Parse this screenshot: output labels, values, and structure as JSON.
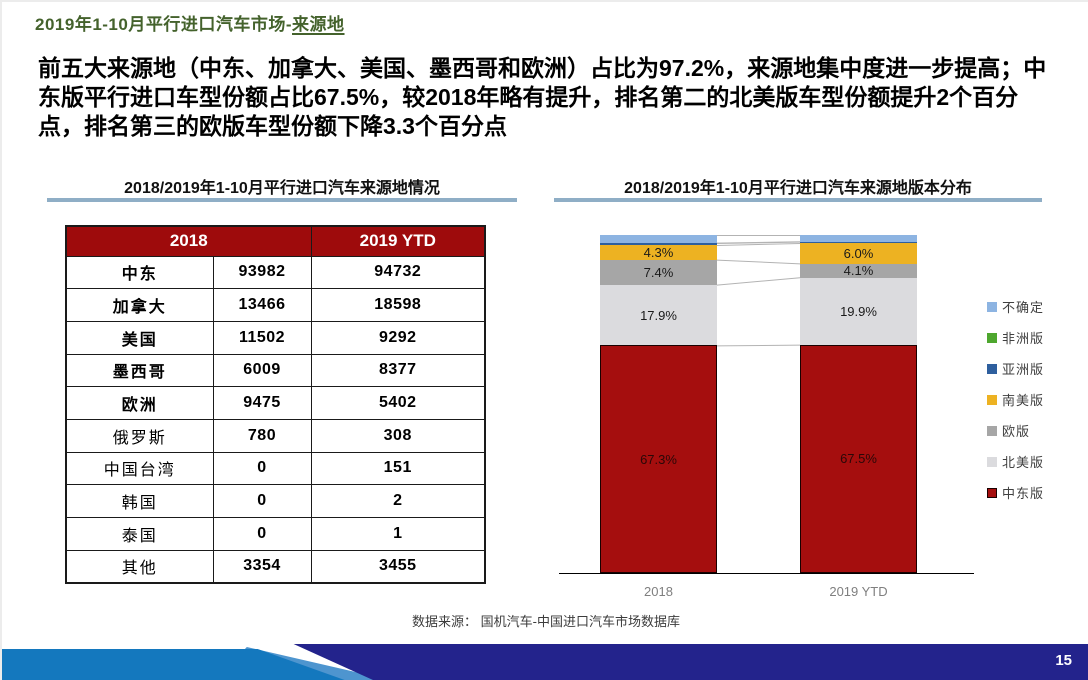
{
  "slide": {
    "title_prefix": "2019年1-10月平行进口汽车市场-",
    "title_underlined": "来源地",
    "body": "前五大来源地（中东、加拿大、美国、墨西哥和欧洲）占比为97.2%，来源地集中度进一步提高；中东版平行进口车型份额占比67.5%，较2018年略有提升，排名第二的北美版车型份额提升2个百分点，排名第三的欧版车型份额下降3.3个百分点",
    "source_note": "数据来源： 国机汽车-中国进口汽车市场数据库",
    "page_number": "15"
  },
  "table_panel": {
    "title": "2018/2019年1-10月平行进口汽车来源地情况",
    "header": {
      "col_2018": "2018",
      "col_2019": "2019 YTD"
    },
    "rows": [
      {
        "label": "中东",
        "v2018": "93982",
        "v2019": "94732",
        "emphasis": true
      },
      {
        "label": "加拿大",
        "v2018": "13466",
        "v2019": "18598",
        "emphasis": true
      },
      {
        "label": "美国",
        "v2018": "11502",
        "v2019": "9292",
        "emphasis": true
      },
      {
        "label": "墨西哥",
        "v2018": "6009",
        "v2019": "8377",
        "emphasis": true
      },
      {
        "label": "欧洲",
        "v2018": "9475",
        "v2019": "5402",
        "emphasis": true
      },
      {
        "label": "俄罗斯",
        "v2018": "780",
        "v2019": "308",
        "emphasis": false
      },
      {
        "label": "中国台湾",
        "v2018": "0",
        "v2019": "151",
        "emphasis": false
      },
      {
        "label": "韩国",
        "v2018": "0",
        "v2019": "2",
        "emphasis": false
      },
      {
        "label": "泰国",
        "v2018": "0",
        "v2019": "1",
        "emphasis": false
      },
      {
        "label": "其他",
        "v2018": "3354",
        "v2019": "3455",
        "emphasis": false
      }
    ]
  },
  "chart_panel": {
    "title": "2018/2019年1-10月平行进口汽车来源地版本分布"
  },
  "chart_data": {
    "type": "bar",
    "subtype": "stacked-100-percent",
    "title": "2018/2019年1-10月平行进口汽车来源地版本分布",
    "categories": [
      "2018",
      "2019 YTD"
    ],
    "series_bottom_to_top": [
      {
        "name": "中东版",
        "color": "#A50E0E",
        "border": "#1a0000",
        "values": [
          67.3,
          67.5
        ],
        "labels": [
          "67.3%",
          "67.5%"
        ],
        "label_style": "on-dark"
      },
      {
        "name": "北美版",
        "color": "#DBDBDE",
        "border": "",
        "values": [
          17.9,
          19.9
        ],
        "labels": [
          "17.9%",
          "19.9%"
        ],
        "label_style": ""
      },
      {
        "name": "欧版",
        "color": "#A6A6A6",
        "border": "",
        "values": [
          7.4,
          4.1
        ],
        "labels": [
          "7.4%",
          "4.1%"
        ],
        "label_style": ""
      },
      {
        "name": "南美版",
        "color": "#EDB222",
        "border": "",
        "values": [
          4.3,
          6.0
        ],
        "labels": [
          "4.3%",
          "6.0%"
        ],
        "label_style": ""
      },
      {
        "name": "亚洲版",
        "color": "#2E5F9E",
        "border": "",
        "values": [
          0.6,
          0.4
        ],
        "labels": [
          "",
          ""
        ],
        "label_style": ""
      },
      {
        "name": "非洲版",
        "color": "#4EA72E",
        "border": "",
        "values": [
          0.1,
          0.1
        ],
        "labels": [
          "",
          ""
        ],
        "label_style": ""
      },
      {
        "name": "不确定",
        "color": "#8DB4E2",
        "border": "",
        "values": [
          2.4,
          2.0
        ],
        "labels": [
          "",
          ""
        ],
        "label_style": ""
      }
    ],
    "legend_order_top_to_bottom": [
      "不确定",
      "非洲版",
      "亚洲版",
      "南美版",
      "欧版",
      "北美版",
      "中东版"
    ],
    "legend_position": "right",
    "ylim": [
      0,
      100
    ],
    "grid": false,
    "connector_lines": true,
    "connector_color": "#b3b3b3"
  }
}
